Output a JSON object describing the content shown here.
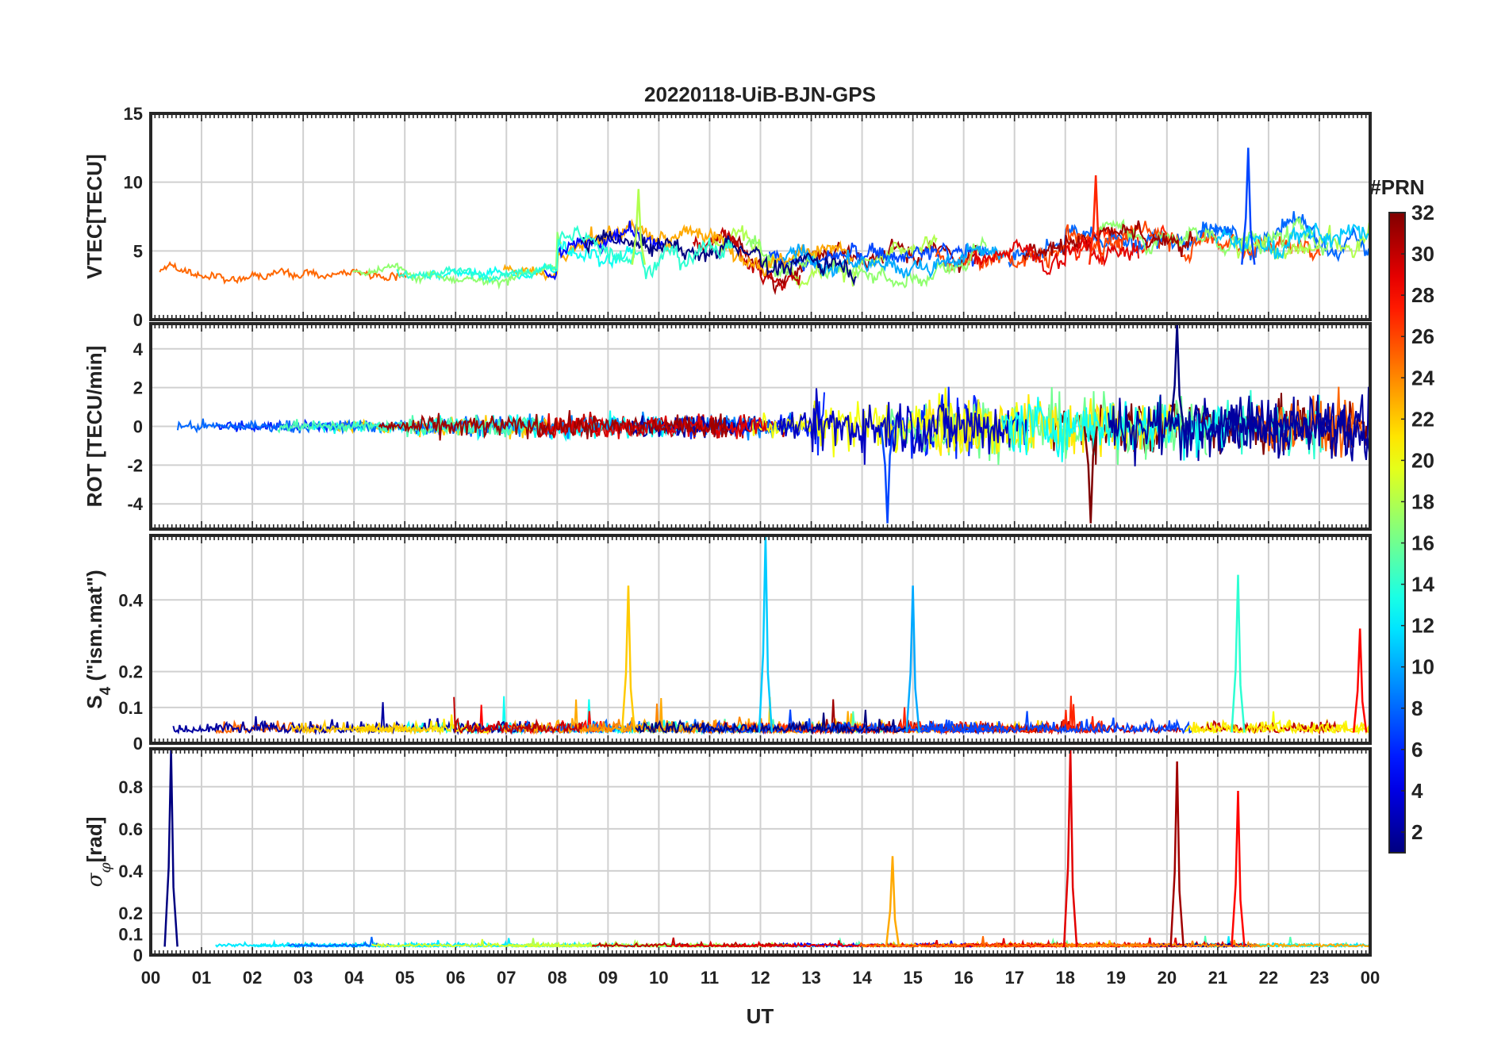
{
  "chart_data": {
    "type": "line",
    "title": "20220118-UiB-BJN-GPS",
    "xlabel": "UT",
    "x_ticks": [
      "00",
      "01",
      "02",
      "03",
      "04",
      "05",
      "06",
      "07",
      "08",
      "09",
      "10",
      "11",
      "12",
      "13",
      "14",
      "15",
      "16",
      "17",
      "18",
      "19",
      "20",
      "21",
      "22",
      "23",
      "00"
    ],
    "x_range_hours": [
      0,
      24
    ],
    "grid": true,
    "colorbar": {
      "label": "#PRN",
      "range": [
        1,
        32
      ],
      "ticks": [
        "2",
        "4",
        "6",
        "8",
        "10",
        "12",
        "14",
        "16",
        "18",
        "20",
        "22",
        "24",
        "26",
        "28",
        "30",
        "32"
      ],
      "colormap": "jet",
      "location": "right"
    },
    "panels": [
      {
        "id": "vtec",
        "ylabel": "VTEC[TECU]",
        "ylim": [
          0,
          15
        ],
        "yticks": [
          "0",
          "5",
          "10",
          "15"
        ],
        "baseline": 4,
        "activity": [
          {
            "from": 0,
            "to": 8,
            "level": 3.5,
            "noise": 0.8
          },
          {
            "from": 8,
            "to": 12,
            "level": 5.5,
            "noise": 1.6
          },
          {
            "from": 12,
            "to": 18,
            "level": 4.5,
            "noise": 1.6
          },
          {
            "from": 18,
            "to": 24,
            "level": 5.8,
            "noise": 1.8
          }
        ],
        "peaks": [
          {
            "hour": 9.6,
            "value": 9.5
          },
          {
            "hour": 18.6,
            "value": 10.5
          },
          {
            "hour": 21.6,
            "value": 12.5
          }
        ]
      },
      {
        "id": "rot",
        "ylabel": "ROT [TECU/min]",
        "ylim": [
          -5.3,
          5.3
        ],
        "yticks": [
          "-4",
          "-2",
          "0",
          "2",
          "4"
        ],
        "baseline": 0,
        "activity": [
          {
            "from": 0,
            "to": 5,
            "level": 0,
            "noise": 0.3
          },
          {
            "from": 5,
            "to": 13,
            "level": 0,
            "noise": 0.6
          },
          {
            "from": 13,
            "to": 24,
            "level": 0,
            "noise": 1.6
          }
        ],
        "peaks": [
          {
            "hour": 20.2,
            "value": 5.3
          },
          {
            "hour": 18.5,
            "value": -5.0
          },
          {
            "hour": 14.5,
            "value": -5.0
          }
        ]
      },
      {
        "id": "s4",
        "ylabel": "S4 (\"ism.mat\")",
        "ylabel_main": "S",
        "ylabel_sub": "4",
        "ylabel_rest": " (\"ism.mat\")",
        "ylim": [
          0,
          0.58
        ],
        "yticks": [
          "0",
          "0.1",
          "0.2",
          "0.4"
        ],
        "baseline": 0.03,
        "activity": [
          {
            "from": 0,
            "to": 24,
            "level": 0.03,
            "noise": 0.03
          }
        ],
        "peaks": [
          {
            "hour": 9.4,
            "value": 0.44
          },
          {
            "hour": 12.1,
            "value": 0.58
          },
          {
            "hour": 15.0,
            "value": 0.44
          },
          {
            "hour": 21.4,
            "value": 0.47
          },
          {
            "hour": 23.8,
            "value": 0.32
          }
        ]
      },
      {
        "id": "sigma_phi",
        "ylabel": "σφ[rad]",
        "ylabel_main": "σ",
        "ylabel_sub": "φ",
        "ylabel_rest": "[rad]",
        "ylim": [
          0,
          0.98
        ],
        "yticks": [
          "0",
          "0.1",
          "0.2",
          "0.4",
          "0.6",
          "0.8"
        ],
        "baseline": 0.04,
        "activity": [
          {
            "from": 0,
            "to": 24,
            "level": 0.04,
            "noise": 0.015
          }
        ],
        "peaks": [
          {
            "hour": 0.4,
            "value": 0.98
          },
          {
            "hour": 18.1,
            "value": 0.98
          },
          {
            "hour": 20.2,
            "value": 0.92
          },
          {
            "hour": 21.4,
            "value": 0.78
          },
          {
            "hour": 14.6,
            "value": 0.47
          }
        ]
      }
    ]
  }
}
